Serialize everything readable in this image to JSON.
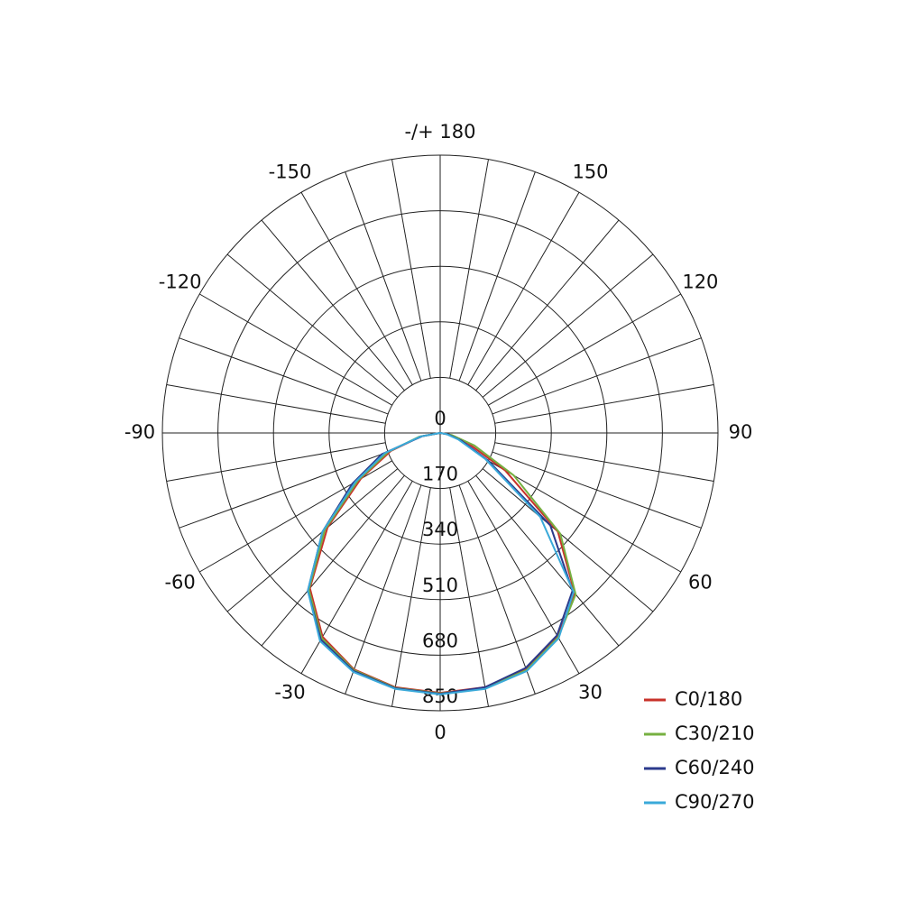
{
  "chart_data": {
    "type": "polar",
    "angles": [
      -90,
      -80,
      -70,
      -60,
      -50,
      -40,
      -30,
      -20,
      -10,
      0,
      10,
      20,
      30,
      40,
      50,
      60,
      70,
      80,
      90
    ],
    "rlim": [
      0,
      850
    ],
    "rticks": [
      0,
      170,
      340,
      510,
      680,
      850
    ],
    "angle_ticks": [
      0,
      30,
      60,
      90,
      120,
      150,
      {
        "value": 180,
        "label": "-/+ 180"
      },
      -150,
      -120,
      -90,
      -60,
      -30
    ],
    "legend": "bottom-right",
    "series": [
      {
        "name": "C0/180",
        "color": "#c8322a",
        "values": [
          0,
          60,
          160,
          280,
          450,
          620,
          720,
          770,
          790,
          795,
          790,
          770,
          720,
          640,
          470,
          230,
          90,
          30,
          0
        ]
      },
      {
        "name": "C30/210",
        "color": "#76b041",
        "values": [
          0,
          65,
          170,
          290,
          460,
          625,
          725,
          772,
          792,
          797,
          792,
          772,
          722,
          645,
          480,
          260,
          110,
          35,
          0
        ]
      },
      {
        "name": "C60/240",
        "color": "#2b3a8c",
        "values": [
          0,
          55,
          190,
          310,
          470,
          630,
          730,
          775,
          793,
          798,
          790,
          765,
          715,
          630,
          440,
          170,
          70,
          25,
          0
        ]
      },
      {
        "name": "C90/270",
        "color": "#3aa9d9",
        "values": [
          0,
          60,
          180,
          300,
          470,
          630,
          735,
          778,
          795,
          800,
          795,
          775,
          725,
          635,
          400,
          160,
          60,
          20,
          0
        ]
      }
    ]
  }
}
